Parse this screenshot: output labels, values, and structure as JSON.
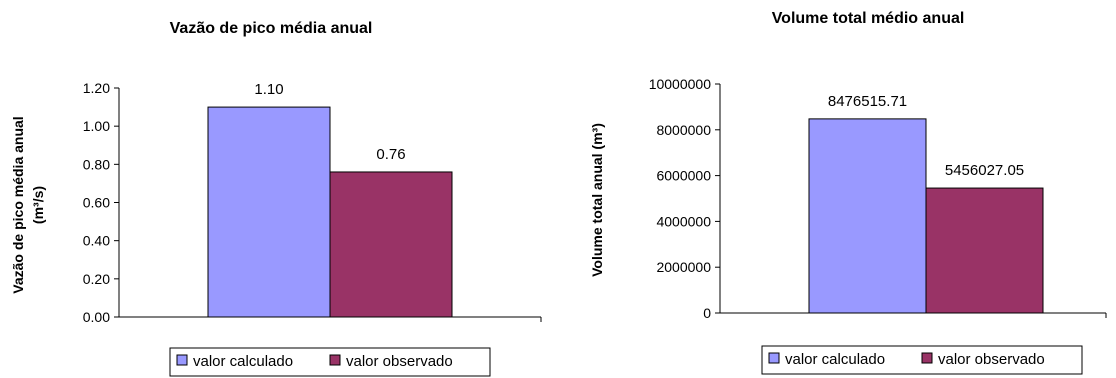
{
  "colors": {
    "series_1": "#9999FF",
    "series_2": "#993366",
    "axis": "#000000"
  },
  "chart_data": [
    {
      "type": "bar",
      "title": "Vazão de pico média anual",
      "ylabel_lines": [
        "Vazão de pico média anual",
        "(m³/s)"
      ],
      "xlabel": "",
      "ylim": [
        0,
        1.2
      ],
      "yticks": [
        "0.00",
        "0.20",
        "0.40",
        "0.60",
        "0.80",
        "1.00",
        "1.20"
      ],
      "grid": false,
      "legend_position": "bottom",
      "series": [
        {
          "name": "valor calculado",
          "value": 1.1,
          "label": "1.10"
        },
        {
          "name": "valor observado",
          "value": 0.76,
          "label": "0.76"
        }
      ]
    },
    {
      "type": "bar",
      "title": "Volume total médio anual",
      "ylabel_lines": [
        "Volume total anual (m³)"
      ],
      "xlabel": "",
      "ylim": [
        0,
        10000000
      ],
      "yticks": [
        "0",
        "2000000",
        "4000000",
        "6000000",
        "8000000",
        "10000000"
      ],
      "grid": false,
      "legend_position": "bottom",
      "series": [
        {
          "name": "valor calculado",
          "value": 8476515.71,
          "label": "8476515.71"
        },
        {
          "name": "valor observado",
          "value": 5456027.05,
          "label": "5456027.05"
        }
      ]
    }
  ]
}
